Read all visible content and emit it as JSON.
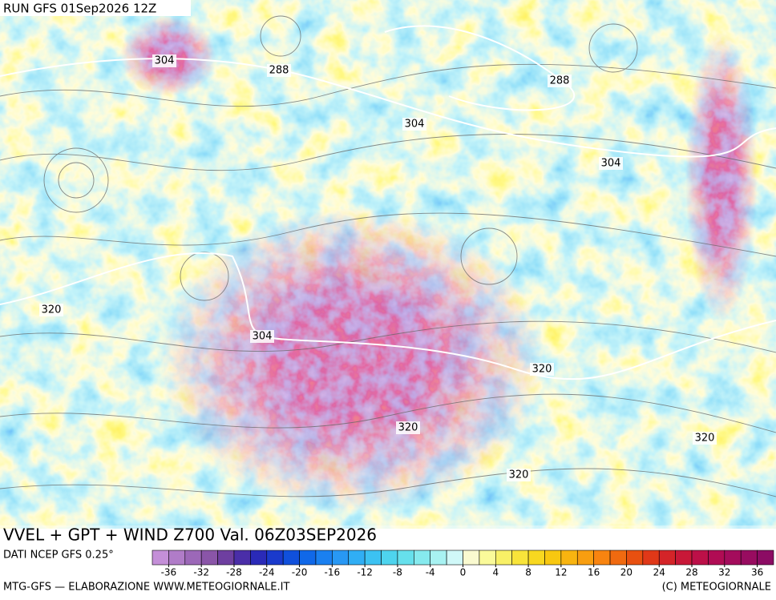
{
  "header": {
    "run": "RUN GFS 01Sep2026 12Z"
  },
  "map": {
    "contour_labels": [
      "304",
      "288",
      "288",
      "304",
      "304",
      "320",
      "304",
      "320",
      "320",
      "320",
      "320"
    ]
  },
  "footer": {
    "title": "VVEL + GPT + WIND Z700 Val. 06Z03SEP2026",
    "source": "DATI NCEP GFS 0.25°",
    "credit": "MTG-GFS — ELABORAZIONE WWW.METEOGIORNALE.IT",
    "copyright": "(C) METEOGIORNALE"
  },
  "colorbar": {
    "range": [
      -38,
      38
    ],
    "ticks": [
      -36,
      -32,
      -28,
      -24,
      -20,
      -16,
      -12,
      -8,
      -4,
      0,
      4,
      8,
      12,
      16,
      20,
      24,
      28,
      32,
      36
    ],
    "colors": [
      "#c48fd8",
      "#b07cc8",
      "#9c68b8",
      "#8a55a8",
      "#6e3fa0",
      "#4a2ea8",
      "#2a2ab8",
      "#1a3acc",
      "#1050dc",
      "#1068e8",
      "#1a80f0",
      "#2898f4",
      "#30aef4",
      "#3cc2f2",
      "#4ed4ee",
      "#66e0ec",
      "#86eaee",
      "#a8f2f2",
      "#d0f8f8",
      "#fafad0",
      "#fafa9a",
      "#f8f066",
      "#f8e43a",
      "#f8d820",
      "#f8c810",
      "#f8b410",
      "#f89e10",
      "#f88410",
      "#f06a10",
      "#e85010",
      "#e03818",
      "#d42428",
      "#c81838",
      "#bc1048",
      "#b00c54",
      "#a40c5c",
      "#980c60",
      "#8c0c64"
    ]
  }
}
